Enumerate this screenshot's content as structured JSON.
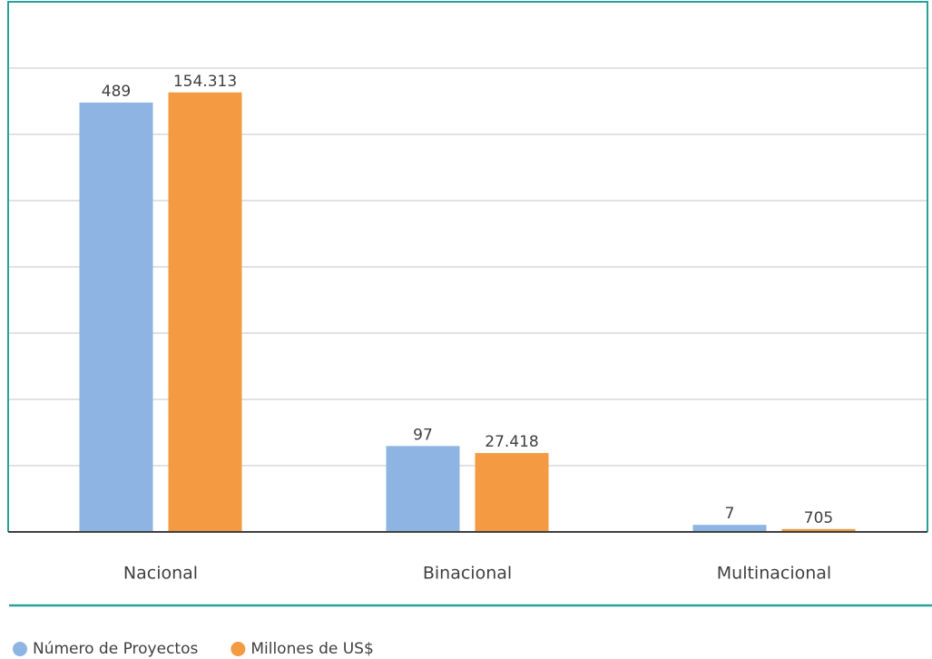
{
  "chart_data": {
    "type": "bar",
    "categories": [
      "Nacional",
      "Binacional",
      "Multinacional"
    ],
    "series": [
      {
        "name": "Número de Proyectos",
        "color": "#8db4e2",
        "values": [
          489,
          97,
          7
        ]
      },
      {
        "name": "Millones de US$",
        "color": "#f39a42",
        "values": [
          154313,
          27418,
          705
        ],
        "value_labels": [
          "154.313",
          "27.418",
          "705"
        ],
        "axis": "y2"
      }
    ],
    "ylim": [
      0,
      605
    ],
    "y2lim": [
      0,
      186500
    ]
  }
}
